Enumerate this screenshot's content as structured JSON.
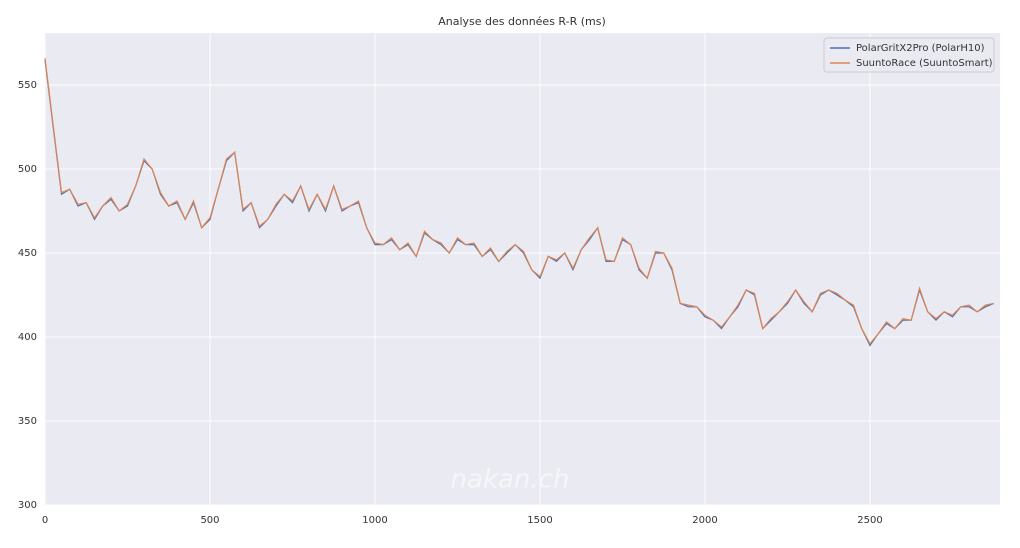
{
  "chart_data": {
    "type": "line",
    "title": "Analyse des données R-R (ms)",
    "watermark": "nakan.ch",
    "x": [
      0,
      25,
      50,
      75,
      100,
      125,
      150,
      175,
      200,
      225,
      250,
      275,
      300,
      325,
      350,
      375,
      400,
      425,
      450,
      475,
      500,
      525,
      550,
      575,
      600,
      625,
      650,
      675,
      700,
      725,
      750,
      775,
      800,
      825,
      850,
      875,
      900,
      925,
      950,
      975,
      1000,
      1025,
      1050,
      1075,
      1100,
      1125,
      1150,
      1175,
      1200,
      1225,
      1250,
      1275,
      1300,
      1325,
      1350,
      1375,
      1400,
      1425,
      1450,
      1475,
      1500,
      1525,
      1550,
      1575,
      1600,
      1625,
      1650,
      1675,
      1700,
      1725,
      1750,
      1775,
      1800,
      1825,
      1850,
      1875,
      1900,
      1925,
      1950,
      1975,
      2000,
      2025,
      2050,
      2075,
      2100,
      2125,
      2150,
      2175,
      2200,
      2225,
      2250,
      2275,
      2300,
      2325,
      2350,
      2375,
      2400,
      2425,
      2450,
      2475,
      2500,
      2525,
      2550,
      2575,
      2600,
      2625,
      2650,
      2675,
      2700,
      2725,
      2750,
      2775,
      2800,
      2825,
      2850,
      2875
    ],
    "series": [
      {
        "name": "PolarGritX2Pro (PolarH10)",
        "color": "#4c72b0",
        "values": [
          565,
          525,
          485,
          488,
          478,
          480,
          470,
          478,
          482,
          475,
          478,
          490,
          505,
          500,
          485,
          478,
          480,
          470,
          480,
          465,
          470,
          488,
          505,
          510,
          475,
          480,
          465,
          470,
          478,
          485,
          480,
          490,
          475,
          485,
          475,
          490,
          475,
          478,
          480,
          465,
          455,
          455,
          458,
          452,
          455,
          448,
          462,
          458,
          455,
          450,
          458,
          455,
          455,
          448,
          452,
          445,
          450,
          455,
          450,
          440,
          435,
          448,
          445,
          450,
          440,
          452,
          458,
          465,
          445,
          445,
          458,
          455,
          440,
          435,
          450,
          450,
          440,
          420,
          418,
          418,
          412,
          410,
          405,
          412,
          418,
          428,
          425,
          405,
          410,
          415,
          420,
          428,
          420,
          415,
          425,
          428,
          425,
          422,
          418,
          405,
          395,
          402,
          408,
          405,
          410,
          410,
          428,
          415,
          410,
          415,
          412,
          418,
          418,
          415,
          418,
          420
        ]
      },
      {
        "name": "SuuntoRace (SuuntoSmart)",
        "color": "#dd8452",
        "values": [
          566,
          526,
          486,
          488,
          479,
          480,
          471,
          478,
          483,
          475,
          479,
          490,
          506,
          500,
          486,
          478,
          481,
          470,
          481,
          465,
          471,
          488,
          506,
          510,
          476,
          480,
          466,
          470,
          479,
          485,
          481,
          490,
          476,
          485,
          476,
          490,
          476,
          478,
          481,
          465,
          456,
          455,
          459,
          452,
          456,
          448,
          463,
          458,
          456,
          450,
          459,
          455,
          456,
          448,
          453,
          445,
          451,
          455,
          451,
          440,
          436,
          448,
          446,
          450,
          441,
          452,
          459,
          465,
          446,
          445,
          459,
          455,
          441,
          435,
          451,
          450,
          441,
          420,
          419,
          418,
          413,
          410,
          406,
          412,
          419,
          428,
          426,
          405,
          411,
          415,
          421,
          428,
          421,
          415,
          426,
          428,
          426,
          422,
          419,
          405,
          396,
          402,
          409,
          405,
          411,
          410,
          429,
          415,
          411,
          415,
          413,
          418,
          419,
          415,
          419,
          420
        ]
      }
    ],
    "xlim": [
      0,
      2894
    ],
    "ylim": [
      300,
      581
    ],
    "xticks": [
      0,
      500,
      1000,
      1500,
      2000,
      2500
    ],
    "yticks": [
      300,
      350,
      400,
      450,
      500,
      550
    ],
    "grid": true,
    "legend": "upper right"
  }
}
